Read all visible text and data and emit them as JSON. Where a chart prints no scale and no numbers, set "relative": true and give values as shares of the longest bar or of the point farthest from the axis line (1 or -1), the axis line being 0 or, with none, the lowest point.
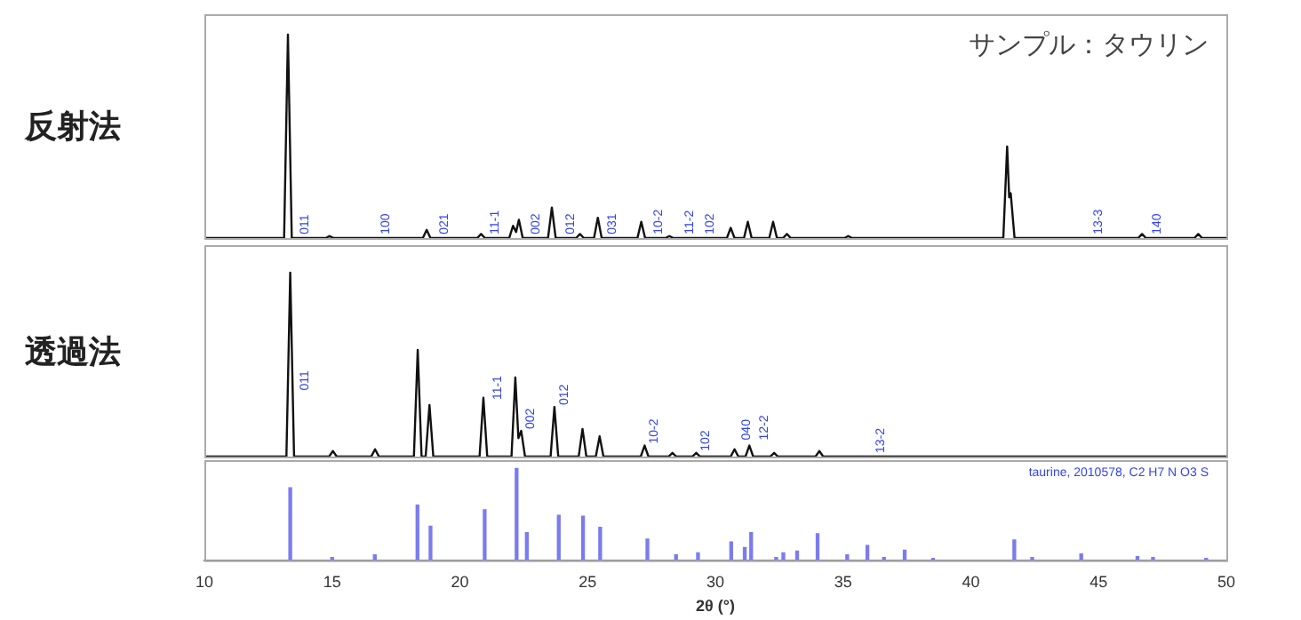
{
  "chart_data": [
    {
      "type": "line",
      "relative": true,
      "ylabel": "反射法",
      "marker": "none",
      "color": "#111111",
      "xlim": [
        10,
        50
      ],
      "tick_labels": false,
      "x": [
        10,
        13.12,
        13.27,
        13.42,
        14.75,
        14.9,
        15.05,
        18.55,
        18.7,
        18.85,
        20.68,
        20.83,
        20.98,
        21.93,
        22.08,
        22.2,
        22.31,
        22.46,
        23.45,
        23.6,
        23.75,
        24.55,
        24.7,
        24.85,
        25.25,
        25.4,
        25.55,
        26.95,
        27.1,
        27.25,
        28.05,
        28.2,
        28.35,
        30.45,
        30.6,
        30.75,
        31.12,
        31.27,
        31.42,
        32.11,
        32.26,
        32.41,
        32.65,
        32.8,
        32.95,
        35.05,
        35.2,
        35.35,
        41.27,
        41.42,
        41.5,
        41.56,
        41.71,
        46.55,
        46.7,
        46.85,
        48.75,
        48.9,
        49.05,
        50
      ],
      "values": [
        0,
        0,
        1,
        0,
        0,
        0.01,
        0,
        0,
        0.04,
        0,
        0,
        0.02,
        0,
        0,
        0.06,
        0.03,
        0.09,
        0,
        0,
        0.15,
        0,
        0,
        0.02,
        0,
        0,
        0.1,
        0,
        0,
        0.08,
        0,
        0,
        0.01,
        0,
        0,
        0.05,
        0,
        0,
        0.08,
        0,
        0,
        0.08,
        0,
        0,
        0.02,
        0,
        0,
        0.01,
        0,
        0,
        0.45,
        0.2,
        0.22,
        0,
        0,
        0.02,
        0,
        0,
        0.02,
        0,
        0
      ],
      "annotations": [
        "サンプル：タウリン",
        {
          "text": "011",
          "x": 13.55,
          "y": 0.01
        },
        {
          "text": "100",
          "x": 16.7,
          "y": 0.01
        },
        {
          "text": "021",
          "x": 19.0,
          "y": 0.01
        },
        {
          "text": "11-1",
          "x": 21.0,
          "y": 0.01
        },
        {
          "text": "002",
          "x": 22.6,
          "y": 0.01
        },
        {
          "text": "012",
          "x": 23.95,
          "y": 0.01
        },
        {
          "text": "031",
          "x": 25.6,
          "y": 0.01
        },
        {
          "text": "10-2",
          "x": 27.4,
          "y": 0.01
        },
        {
          "text": "11-2",
          "x": 28.6,
          "y": 0.01
        },
        {
          "text": "102",
          "x": 29.4,
          "y": 0.01
        },
        {
          "text": "13-3",
          "x": 44.6,
          "y": 0.01
        },
        {
          "text": "140",
          "x": 46.9,
          "y": 0.01
        }
      ]
    },
    {
      "type": "line",
      "relative": true,
      "ylabel": "透過法",
      "marker": "none",
      "color": "#111111",
      "xlim": [
        10,
        50
      ],
      "tick_labels": false,
      "x": [
        10,
        13.21,
        13.36,
        13.51,
        14.88,
        15.03,
        15.18,
        16.53,
        16.68,
        16.83,
        18.2,
        18.35,
        18.5,
        18.66,
        18.81,
        18.96,
        20.77,
        20.92,
        21.07,
        22.02,
        22.17,
        22.29,
        22.4,
        22.55,
        23.55,
        23.7,
        23.85,
        24.65,
        24.8,
        24.95,
        25.32,
        25.47,
        25.62,
        27.08,
        27.23,
        27.38,
        28.17,
        28.32,
        28.47,
        29.1,
        29.25,
        29.4,
        30.6,
        30.75,
        30.9,
        31.18,
        31.33,
        31.48,
        32.15,
        32.3,
        32.45,
        33.92,
        34.07,
        34.22,
        50
      ],
      "values": [
        0,
        0,
        1,
        0,
        0,
        0.03,
        0,
        0,
        0.04,
        0,
        0,
        0.58,
        0,
        0,
        0.28,
        0,
        0,
        0.32,
        0,
        0,
        0.43,
        0.1,
        0.14,
        0,
        0,
        0.27,
        0,
        0,
        0.15,
        0,
        0,
        0.11,
        0,
        0,
        0.06,
        0,
        0,
        0.02,
        0,
        0,
        0.02,
        0,
        0,
        0.04,
        0,
        0,
        0.06,
        0,
        0,
        0.02,
        0,
        0,
        0.03,
        0,
        0
      ],
      "annotations": [
        {
          "text": "011",
          "x": 13.55,
          "y": 0.35
        },
        {
          "text": "11-1",
          "x": 21.1,
          "y": 0.3
        },
        {
          "text": "002",
          "x": 22.4,
          "y": 0.14
        },
        {
          "text": "012",
          "x": 23.7,
          "y": 0.27
        },
        {
          "text": "10-2",
          "x": 27.23,
          "y": 0.06
        },
        {
          "text": "102",
          "x": 29.25,
          "y": 0.02
        },
        {
          "text": "040",
          "x": 30.85,
          "y": 0.08
        },
        {
          "text": "12-2",
          "x": 31.55,
          "y": 0.08
        },
        {
          "text": "13-2",
          "x": 36.1,
          "y": 0.01
        }
      ]
    },
    {
      "type": "bar",
      "relative": true,
      "color": "#7b7bf0",
      "xlim": [
        10,
        50
      ],
      "xticks": [
        10,
        15,
        20,
        25,
        30,
        35,
        40,
        45,
        50
      ],
      "xlabel": "2θ (°)",
      "tick_labels": "x",
      "x": [
        13.36,
        15.0,
        16.67,
        18.34,
        18.85,
        20.97,
        22.22,
        22.62,
        23.87,
        24.82,
        25.49,
        27.34,
        28.46,
        29.32,
        30.62,
        31.15,
        31.4,
        32.38,
        32.66,
        33.2,
        34.0,
        35.16,
        35.95,
        36.6,
        37.41,
        38.52,
        41.7,
        42.4,
        44.32,
        46.52,
        47.13,
        49.21
      ],
      "values": [
        0.79,
        0.03,
        0.06,
        0.6,
        0.37,
        0.55,
        1,
        0.3,
        0.49,
        0.48,
        0.36,
        0.23,
        0.06,
        0.08,
        0.2,
        0.14,
        0.3,
        0.03,
        0.08,
        0.1,
        0.29,
        0.06,
        0.16,
        0.03,
        0.11,
        0.02,
        0.22,
        0.03,
        0.07,
        0.04,
        0.03,
        0.02
      ],
      "annotations": [
        "taurine, 2010578, C2 H7 N O3 S"
      ]
    }
  ]
}
